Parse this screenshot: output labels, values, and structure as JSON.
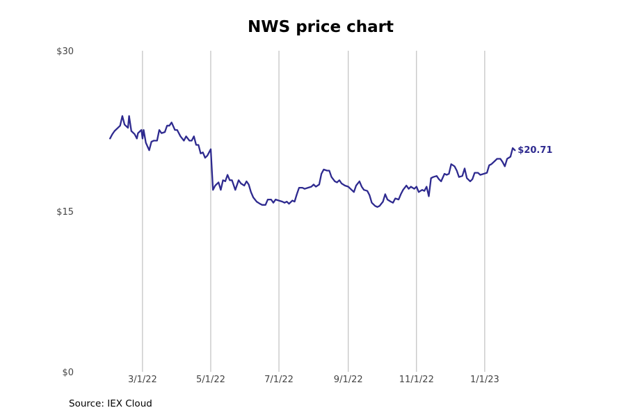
{
  "chart_data": {
    "type": "line",
    "title": "NWS price chart",
    "source": "Source: IEX Cloud",
    "xlabel": "",
    "ylabel": "",
    "ylim": [
      0,
      30
    ],
    "xlim": [
      "2022-01-01",
      "2023-03-31"
    ],
    "grid": "vertical",
    "line_color": "#2e2a8f",
    "y_ticks": [
      {
        "value": 30,
        "label": "$30"
      },
      {
        "value": 15,
        "label": "$15"
      },
      {
        "value": 0,
        "label": "$0"
      }
    ],
    "x_ticks": [
      {
        "date": "2022-03-01",
        "label": "3/1/22"
      },
      {
        "date": "2022-05-01",
        "label": "5/1/22"
      },
      {
        "date": "2022-07-01",
        "label": "7/1/22"
      },
      {
        "date": "2022-09-01",
        "label": "9/1/22"
      },
      {
        "date": "2022-11-01",
        "label": "11/1/22"
      },
      {
        "date": "2023-01-01",
        "label": "1/1/23"
      }
    ],
    "end_label": "$20.71",
    "series": [
      {
        "points": [
          [
            "2022-01-31",
            21.8
          ],
          [
            "2022-02-02",
            22.2
          ],
          [
            "2022-02-04",
            22.5
          ],
          [
            "2022-02-07",
            22.8
          ],
          [
            "2022-02-09",
            23.0
          ],
          [
            "2022-02-11",
            23.9
          ],
          [
            "2022-02-13",
            23.1
          ],
          [
            "2022-02-16",
            22.8
          ],
          [
            "2022-02-17",
            23.9
          ],
          [
            "2022-02-19",
            22.5
          ],
          [
            "2022-02-22",
            22.2
          ],
          [
            "2022-02-24",
            21.8
          ],
          [
            "2022-02-25",
            22.3
          ],
          [
            "2022-02-28",
            22.6
          ],
          [
            "2022-03-01",
            21.8
          ],
          [
            "2022-03-02",
            22.6
          ],
          [
            "2022-03-04",
            21.4
          ],
          [
            "2022-03-07",
            20.7
          ],
          [
            "2022-03-09",
            21.5
          ],
          [
            "2022-03-11",
            21.6
          ],
          [
            "2022-03-14",
            21.6
          ],
          [
            "2022-03-16",
            22.6
          ],
          [
            "2022-03-18",
            22.3
          ],
          [
            "2022-03-21",
            22.4
          ],
          [
            "2022-03-23",
            23.0
          ],
          [
            "2022-03-25",
            23.0
          ],
          [
            "2022-03-27",
            23.3
          ],
          [
            "2022-03-30",
            22.6
          ],
          [
            "2022-04-01",
            22.6
          ],
          [
            "2022-04-04",
            22.0
          ],
          [
            "2022-04-07",
            21.6
          ],
          [
            "2022-04-09",
            22.0
          ],
          [
            "2022-04-12",
            21.6
          ],
          [
            "2022-04-14",
            21.6
          ],
          [
            "2022-04-16",
            22.0
          ],
          [
            "2022-04-18",
            21.2
          ],
          [
            "2022-04-20",
            21.2
          ],
          [
            "2022-04-22",
            20.4
          ],
          [
            "2022-04-24",
            20.5
          ],
          [
            "2022-04-26",
            20.0
          ],
          [
            "2022-04-28",
            20.2
          ],
          [
            "2022-05-01",
            20.8
          ],
          [
            "2022-05-03",
            17.0
          ],
          [
            "2022-05-05",
            17.4
          ],
          [
            "2022-05-08",
            17.7
          ],
          [
            "2022-05-10",
            17.0
          ],
          [
            "2022-05-12",
            17.9
          ],
          [
            "2022-05-14",
            17.8
          ],
          [
            "2022-05-16",
            18.4
          ],
          [
            "2022-05-18",
            17.9
          ],
          [
            "2022-05-20",
            17.9
          ],
          [
            "2022-05-23",
            17.0
          ],
          [
            "2022-05-26",
            17.9
          ],
          [
            "2022-05-28",
            17.6
          ],
          [
            "2022-05-31",
            17.4
          ],
          [
            "2022-06-02",
            17.8
          ],
          [
            "2022-06-04",
            17.5
          ],
          [
            "2022-06-06",
            16.8
          ],
          [
            "2022-06-08",
            16.3
          ],
          [
            "2022-06-11",
            15.9
          ],
          [
            "2022-06-14",
            15.7
          ],
          [
            "2022-06-16",
            15.6
          ],
          [
            "2022-06-19",
            15.6
          ],
          [
            "2022-06-21",
            16.1
          ],
          [
            "2022-06-24",
            16.1
          ],
          [
            "2022-06-26",
            15.8
          ],
          [
            "2022-06-28",
            16.1
          ],
          [
            "2022-07-01",
            16.0
          ],
          [
            "2022-07-04",
            15.9
          ],
          [
            "2022-07-06",
            15.8
          ],
          [
            "2022-07-08",
            15.9
          ],
          [
            "2022-07-10",
            15.7
          ],
          [
            "2022-07-13",
            16.0
          ],
          [
            "2022-07-15",
            15.9
          ],
          [
            "2022-07-17",
            16.6
          ],
          [
            "2022-07-19",
            17.2
          ],
          [
            "2022-07-22",
            17.2
          ],
          [
            "2022-07-24",
            17.1
          ],
          [
            "2022-07-27",
            17.2
          ],
          [
            "2022-07-30",
            17.3
          ],
          [
            "2022-08-01",
            17.5
          ],
          [
            "2022-08-03",
            17.3
          ],
          [
            "2022-08-06",
            17.5
          ],
          [
            "2022-08-08",
            18.5
          ],
          [
            "2022-08-10",
            18.9
          ],
          [
            "2022-08-13",
            18.8
          ],
          [
            "2022-08-15",
            18.8
          ],
          [
            "2022-08-17",
            18.2
          ],
          [
            "2022-08-20",
            17.8
          ],
          [
            "2022-08-22",
            17.7
          ],
          [
            "2022-08-24",
            17.9
          ],
          [
            "2022-08-26",
            17.6
          ],
          [
            "2022-08-29",
            17.4
          ],
          [
            "2022-09-01",
            17.3
          ],
          [
            "2022-09-03",
            17.1
          ],
          [
            "2022-09-06",
            16.8
          ],
          [
            "2022-09-08",
            17.4
          ],
          [
            "2022-09-11",
            17.8
          ],
          [
            "2022-09-13",
            17.3
          ],
          [
            "2022-09-15",
            17.0
          ],
          [
            "2022-09-18",
            16.9
          ],
          [
            "2022-09-20",
            16.5
          ],
          [
            "2022-09-22",
            15.8
          ],
          [
            "2022-09-25",
            15.5
          ],
          [
            "2022-09-27",
            15.4
          ],
          [
            "2022-09-29",
            15.5
          ],
          [
            "2022-10-02",
            15.9
          ],
          [
            "2022-10-04",
            16.6
          ],
          [
            "2022-10-06",
            16.1
          ],
          [
            "2022-10-09",
            15.9
          ],
          [
            "2022-10-11",
            15.8
          ],
          [
            "2022-10-13",
            16.2
          ],
          [
            "2022-10-16",
            16.1
          ],
          [
            "2022-10-18",
            16.6
          ],
          [
            "2022-10-20",
            17.0
          ],
          [
            "2022-10-23",
            17.4
          ],
          [
            "2022-10-25",
            17.1
          ],
          [
            "2022-10-27",
            17.3
          ],
          [
            "2022-10-30",
            17.1
          ],
          [
            "2022-11-01",
            17.3
          ],
          [
            "2022-11-03",
            16.8
          ],
          [
            "2022-11-06",
            17.0
          ],
          [
            "2022-11-08",
            16.9
          ],
          [
            "2022-11-10",
            17.3
          ],
          [
            "2022-11-12",
            16.4
          ],
          [
            "2022-11-14",
            18.1
          ],
          [
            "2022-11-16",
            18.2
          ],
          [
            "2022-11-19",
            18.3
          ],
          [
            "2022-11-21",
            18.0
          ],
          [
            "2022-11-23",
            17.8
          ],
          [
            "2022-11-26",
            18.5
          ],
          [
            "2022-11-28",
            18.4
          ],
          [
            "2022-11-30",
            18.5
          ],
          [
            "2022-12-02",
            19.4
          ],
          [
            "2022-12-05",
            19.2
          ],
          [
            "2022-12-07",
            18.8
          ],
          [
            "2022-12-09",
            18.2
          ],
          [
            "2022-12-12",
            18.3
          ],
          [
            "2022-12-14",
            19.0
          ],
          [
            "2022-12-16",
            18.1
          ],
          [
            "2022-12-19",
            17.8
          ],
          [
            "2022-12-21",
            18.0
          ],
          [
            "2022-12-23",
            18.6
          ],
          [
            "2022-12-26",
            18.6
          ],
          [
            "2022-12-28",
            18.4
          ],
          [
            "2022-12-31",
            18.5
          ],
          [
            "2023-01-03",
            18.6
          ],
          [
            "2023-01-05",
            19.3
          ],
          [
            "2023-01-07",
            19.4
          ],
          [
            "2023-01-10",
            19.7
          ],
          [
            "2023-01-12",
            19.9
          ],
          [
            "2023-01-15",
            19.9
          ],
          [
            "2023-01-17",
            19.6
          ],
          [
            "2023-01-19",
            19.2
          ],
          [
            "2023-01-21",
            19.9
          ],
          [
            "2023-01-24",
            20.1
          ],
          [
            "2023-01-26",
            20.9
          ],
          [
            "2023-01-28",
            20.7
          ]
        ]
      }
    ]
  }
}
